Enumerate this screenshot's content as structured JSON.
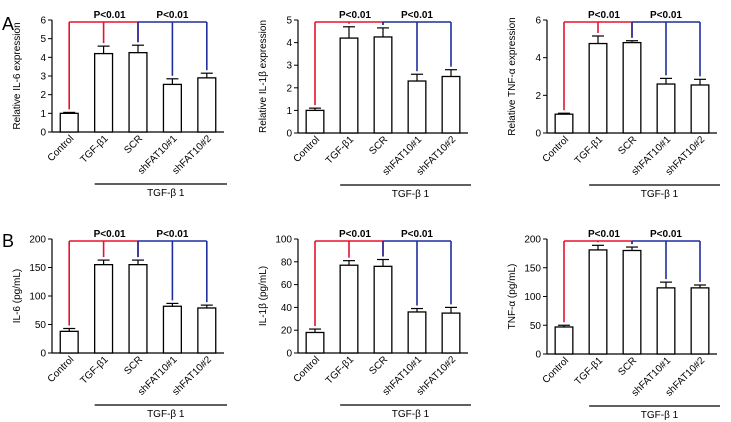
{
  "figure": {
    "panel_labels": [
      "A",
      "B"
    ]
  },
  "colors": {
    "bar_fill": "#ffffff",
    "axis": "#000000",
    "red_bracket": "#e8112d",
    "blue_bracket": "#1f2fa0"
  },
  "chart_data": [
    {
      "type": "bar",
      "row": "A",
      "ylabel": "Relative IL-6 expression",
      "categories": [
        "Control",
        "TGF-β1",
        "SCR",
        "shFAT10#1",
        "shFAT10#2"
      ],
      "values": [
        1.0,
        4.2,
        4.25,
        2.55,
        2.9
      ],
      "errors": [
        0.05,
        0.4,
        0.4,
        0.3,
        0.25
      ],
      "ylim": [
        0,
        6
      ],
      "yticks": [
        0,
        1,
        2,
        3,
        4,
        5,
        6
      ],
      "group_label": "TGF-β 1",
      "brackets": [
        {
          "from": 0,
          "to": 2,
          "label": "P<0.01",
          "color": "red"
        },
        {
          "from": 2,
          "to": 4,
          "label": "P<0.01",
          "color": "blue"
        }
      ]
    },
    {
      "type": "bar",
      "row": "A",
      "ylabel": "Relative IL-1β expression",
      "categories": [
        "Control",
        "TGF-β1",
        "SCR",
        "shFAT10#1",
        "shFAT10#2"
      ],
      "values": [
        1.0,
        4.2,
        4.25,
        2.3,
        2.5
      ],
      "errors": [
        0.1,
        0.5,
        0.4,
        0.3,
        0.3
      ],
      "ylim": [
        0,
        5
      ],
      "yticks": [
        0,
        1,
        2,
        3,
        4,
        5
      ],
      "group_label": "TGF-β 1",
      "brackets": [
        {
          "from": 0,
          "to": 2,
          "label": "P<0.01",
          "color": "red"
        },
        {
          "from": 2,
          "to": 4,
          "label": "P<0.01",
          "color": "blue"
        }
      ]
    },
    {
      "type": "bar",
      "row": "A",
      "ylabel": "Relative TNF-α expression",
      "categories": [
        "Control",
        "TGF-β1",
        "SCR",
        "shFAT10#1",
        "shFAT10#2"
      ],
      "values": [
        1.0,
        4.75,
        4.8,
        2.6,
        2.55
      ],
      "errors": [
        0.05,
        0.4,
        0.1,
        0.3,
        0.3
      ],
      "ylim": [
        0,
        6
      ],
      "yticks": [
        0,
        2,
        4,
        6
      ],
      "group_label": "TGF-β 1",
      "brackets": [
        {
          "from": 0,
          "to": 2,
          "label": "P<0.01",
          "color": "red"
        },
        {
          "from": 2,
          "to": 4,
          "label": "P<0.01",
          "color": "blue"
        }
      ]
    },
    {
      "type": "bar",
      "row": "B",
      "ylabel": "IL-6 (pg/mL)",
      "categories": [
        "Control",
        "TGF-β1",
        "SCR",
        "shFAT10#1",
        "shFAT10#2"
      ],
      "values": [
        38,
        155,
        155,
        82,
        79
      ],
      "errors": [
        5,
        8,
        8,
        5,
        5
      ],
      "ylim": [
        0,
        200
      ],
      "yticks": [
        0,
        50,
        100,
        150,
        200
      ],
      "group_label": "TGF-β 1",
      "brackets": [
        {
          "from": 0,
          "to": 2,
          "label": "P<0.01",
          "color": "red"
        },
        {
          "from": 2,
          "to": 4,
          "label": "P<0.01",
          "color": "blue"
        }
      ]
    },
    {
      "type": "bar",
      "row": "B",
      "ylabel": "IL-1β (pg/mL)",
      "categories": [
        "Control",
        "TGF-β1",
        "SCR",
        "shFAT10#1",
        "shFAT10#2"
      ],
      "values": [
        18,
        77,
        76,
        36,
        35
      ],
      "errors": [
        3,
        4,
        6,
        3,
        5
      ],
      "ylim": [
        0,
        100
      ],
      "yticks": [
        0,
        20,
        40,
        60,
        80,
        100
      ],
      "group_label": "TGF-β 1",
      "brackets": [
        {
          "from": 0,
          "to": 2,
          "label": "P<0.01",
          "color": "red"
        },
        {
          "from": 2,
          "to": 4,
          "label": "P<0.01",
          "color": "blue"
        }
      ]
    },
    {
      "type": "bar",
      "row": "B",
      "ylabel": "TNF-α (pg/mL)",
      "categories": [
        "Control",
        "TGF-β1",
        "SCR",
        "shFAT10#1",
        "shFAT10#2"
      ],
      "values": [
        47,
        181,
        180,
        115,
        115
      ],
      "errors": [
        3,
        8,
        6,
        10,
        5
      ],
      "ylim": [
        0,
        200
      ],
      "yticks": [
        0,
        50,
        100,
        150,
        200
      ],
      "group_label": "TGF-β 1",
      "brackets": [
        {
          "from": 0,
          "to": 2,
          "label": "P<0.01",
          "color": "red"
        },
        {
          "from": 2,
          "to": 4,
          "label": "P<0.01",
          "color": "blue"
        }
      ]
    }
  ]
}
